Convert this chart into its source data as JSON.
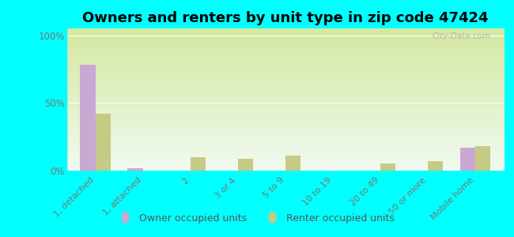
{
  "title": "Owners and renters by unit type in zip code 47424",
  "categories": [
    "1, detached",
    "1, attached",
    "2",
    "3 or 4",
    "5 to 9",
    "10 to 19",
    "20 to 49",
    "50 or more",
    "Mobile home"
  ],
  "owner_values": [
    78,
    2,
    0,
    0,
    0,
    0,
    0,
    0,
    17
  ],
  "renter_values": [
    42,
    0,
    10,
    9,
    11,
    0,
    5,
    7,
    18
  ],
  "owner_color": "#c9a8d4",
  "renter_color": "#c5ca85",
  "yticks": [
    0,
    50,
    100
  ],
  "ylabels": [
    "0%",
    "50%",
    "100%"
  ],
  "ylim": [
    0,
    105
  ],
  "background_color": "#00ffff",
  "gradient_top": "#d4e8a0",
  "gradient_bottom": "#f0faf0",
  "bar_width": 0.32,
  "title_fontsize": 13,
  "legend_labels": [
    "Owner occupied units",
    "Renter occupied units"
  ],
  "watermark": "City-Data.com",
  "tick_label_color": "#777777",
  "grid_color": "#dddddd"
}
